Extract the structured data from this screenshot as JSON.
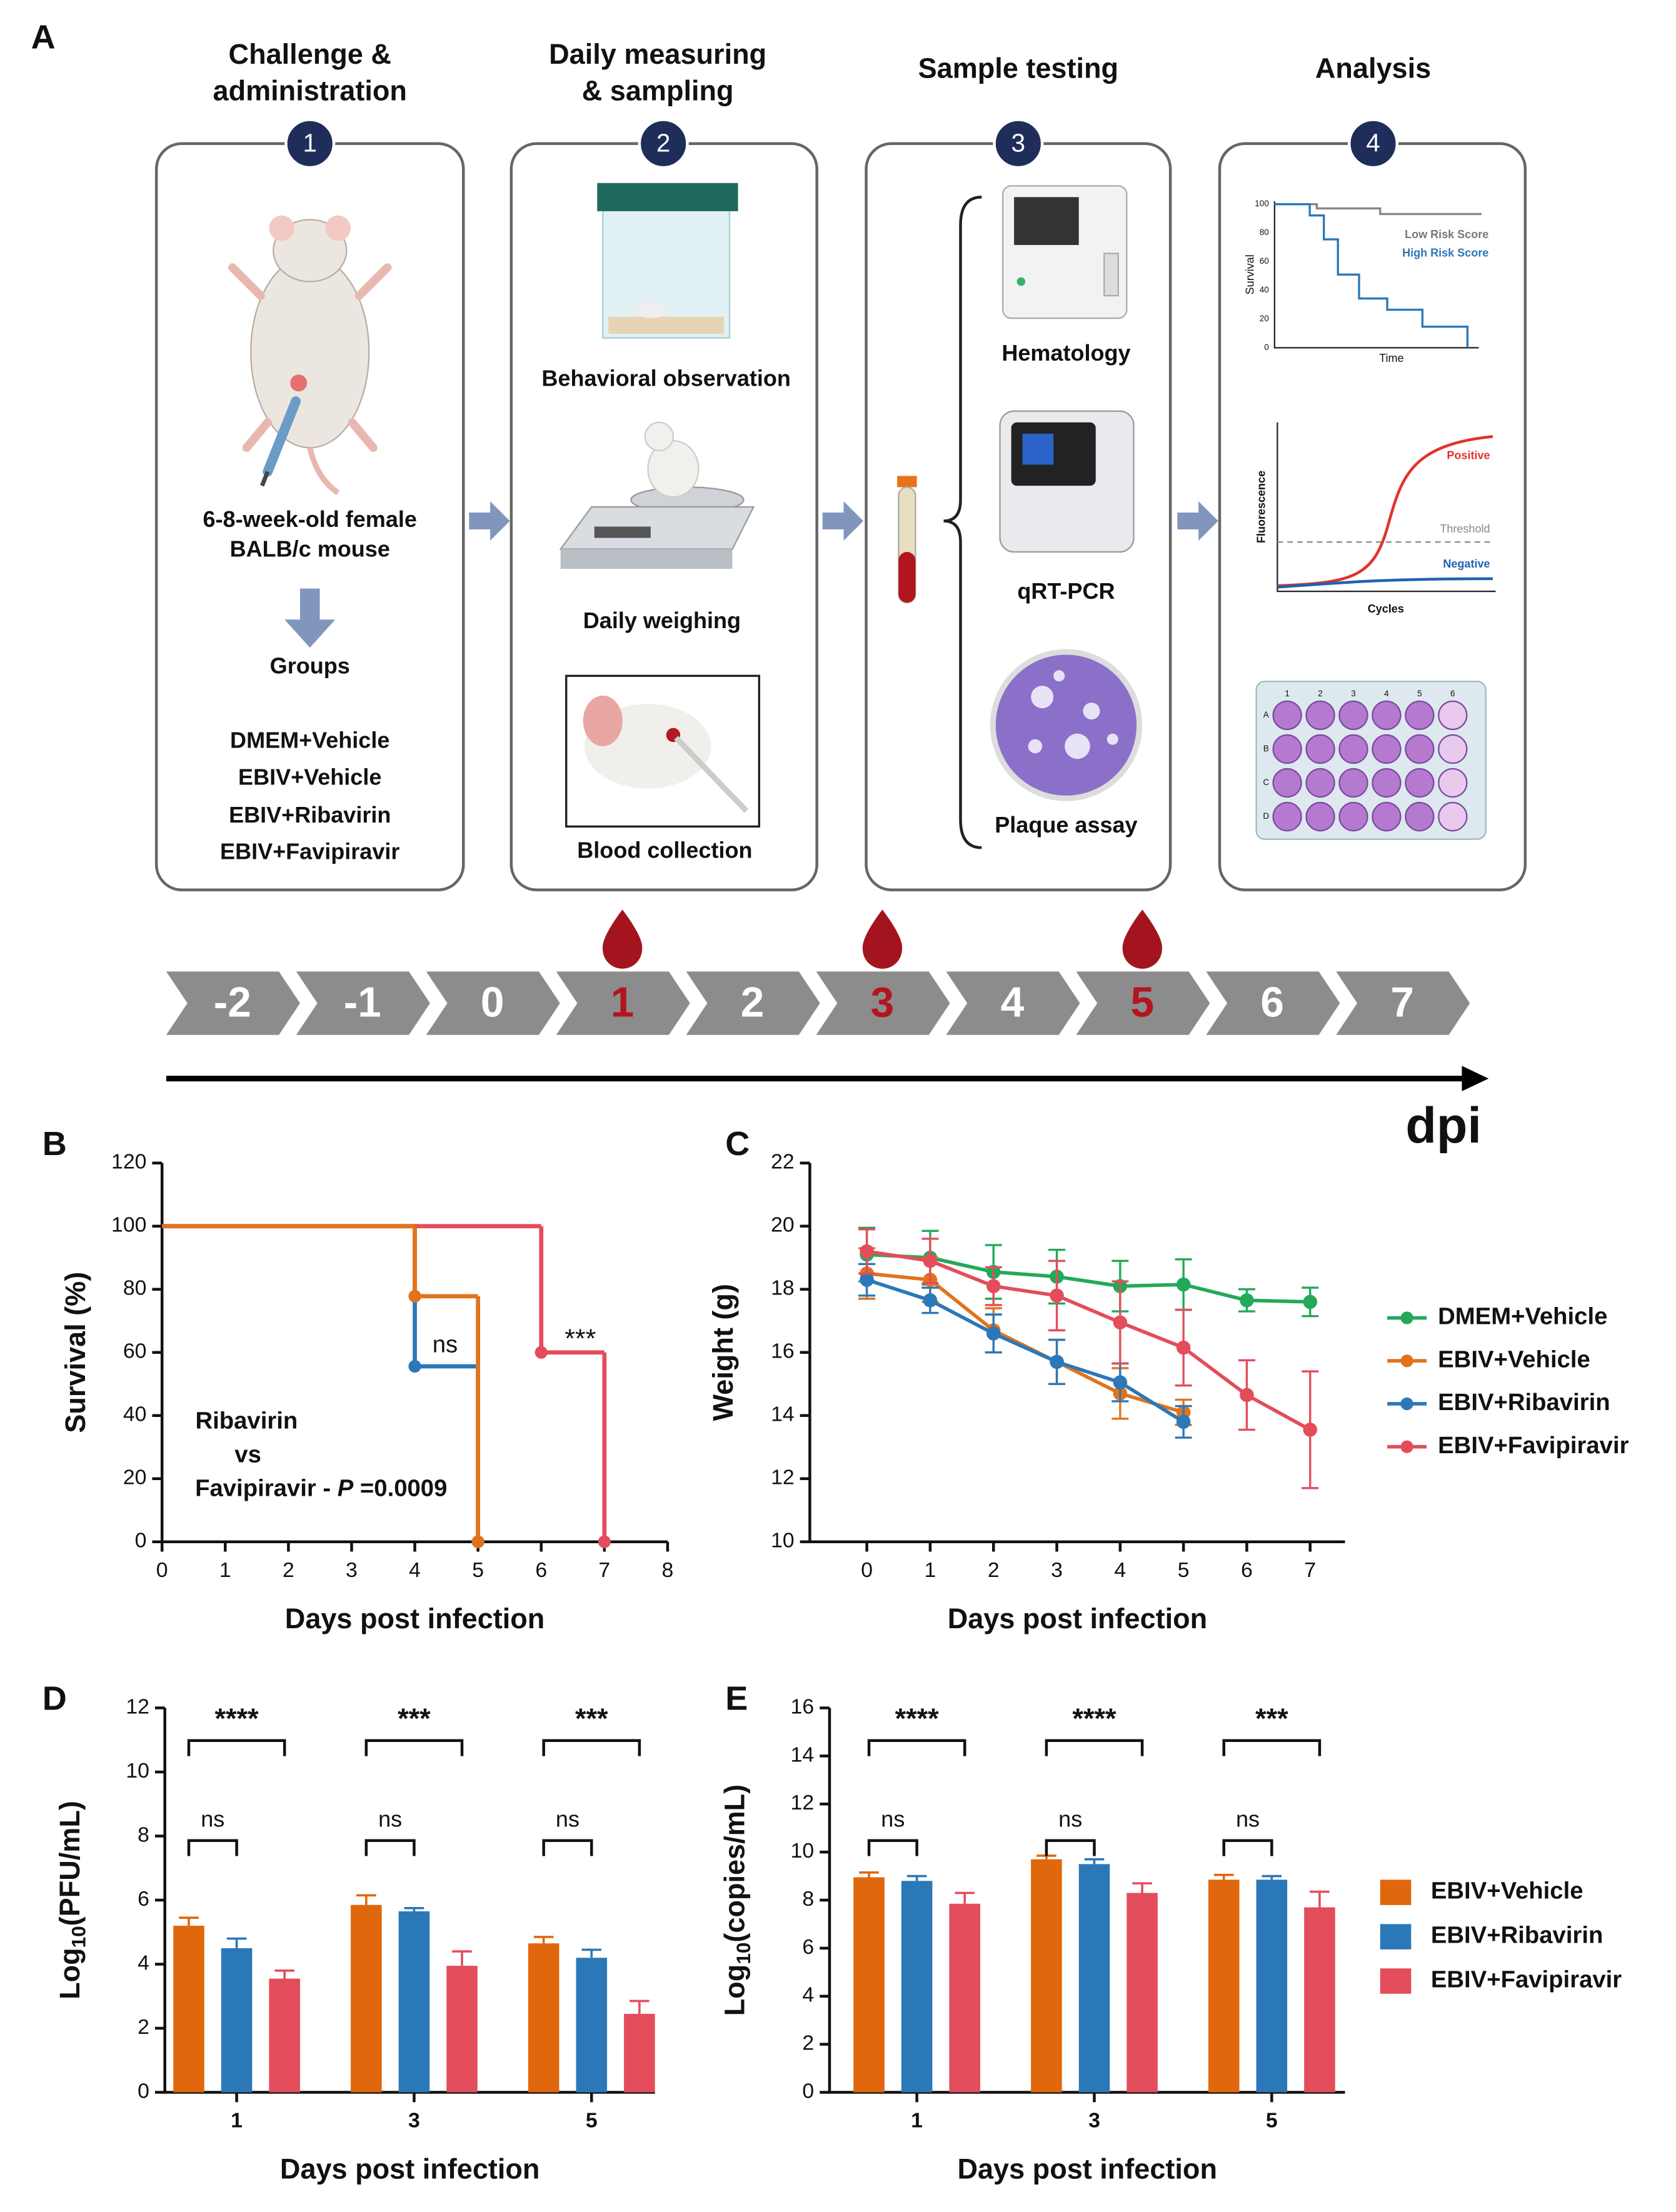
{
  "panel_a": {
    "label": "A",
    "steps": [
      {
        "number": 1,
        "title": [
          "Challenge &",
          "administration"
        ]
      },
      {
        "number": 2,
        "title": [
          "Daily measuring",
          "& sampling"
        ]
      },
      {
        "number": 3,
        "title": [
          "Sample testing"
        ]
      },
      {
        "number": 4,
        "title": [
          "Analysis"
        ]
      }
    ],
    "mouse": [
      "6-8-week-old female",
      "BALB/c mouse"
    ],
    "groups_title": "Groups",
    "groups": [
      "DMEM+Vehicle",
      "EBIV+Vehicle",
      "EBIV+Ribavirin",
      "EBIV+Favipiravir"
    ],
    "step2_items": [
      "Behavioral observation",
      "Daily weighing",
      "Blood collection"
    ],
    "step3_items": [
      "Hematology",
      "qRT-PCR",
      "Plaque assay"
    ],
    "mini_survival": {
      "legend": [
        "Low Risk Score",
        "High Risk Score"
      ],
      "ylabel": "Survival",
      "xlabel": "Time",
      "yticks": [
        0,
        20,
        40,
        60,
        80,
        100
      ]
    },
    "mini_pcr": {
      "positive": "Positive",
      "threshold": "Threshold",
      "negative": "Negative",
      "ylabel": "Fluorescence",
      "xlabel": "Cycles"
    },
    "plate": {
      "columns": [
        1,
        2,
        3,
        4,
        5,
        6
      ],
      "rows": [
        "A",
        "B",
        "C",
        "D"
      ]
    },
    "timeline": {
      "days": [
        -2,
        -1,
        0,
        1,
        2,
        3,
        4,
        5,
        6,
        7
      ],
      "highlight": [
        1,
        3,
        5
      ],
      "unit": "dpi"
    }
  },
  "chart_data": [
    {
      "type": "step",
      "label": "B",
      "xlabel": "Days post infection",
      "ylabel": "Survival (%)",
      "xlim": [
        0,
        8
      ],
      "xticks": [
        0,
        1,
        2,
        3,
        4,
        5,
        6,
        7,
        8
      ],
      "ylim": [
        0,
        120
      ],
      "yticks": [
        0,
        20,
        40,
        60,
        80,
        100,
        120
      ],
      "series": [
        {
          "color": "#e2731b",
          "x": [
            0,
            4,
            5
          ],
          "values": [
            100,
            77.8,
            0
          ]
        },
        {
          "color": "#2b78b9",
          "x": [
            0,
            4,
            5
          ],
          "values": [
            100,
            55.6,
            0
          ]
        },
        {
          "color": "#e34d5b",
          "x": [
            0,
            6,
            7
          ],
          "values": [
            100,
            60,
            0
          ]
        }
      ],
      "annotations": [
        "ns",
        "***",
        "Ribavirin",
        "vs"
      ],
      "p_text": [
        "Favipiravir  - ",
        "P",
        " =0.0009"
      ]
    },
    {
      "type": "line",
      "label": "C",
      "xlabel": "Days post infection",
      "ylabel": "Weight (g)",
      "x": [
        0,
        1,
        2,
        3,
        4,
        5,
        6,
        7
      ],
      "xlim": [
        -0.9,
        7.55
      ],
      "xticks": [
        0,
        1,
        2,
        3,
        4,
        5,
        6,
        7
      ],
      "ylim": [
        10,
        22
      ],
      "yticks": [
        10,
        12,
        14,
        16,
        18,
        20,
        22
      ],
      "legend": "right",
      "series": [
        {
          "name": "DMEM+Vehicle",
          "color": "#22a95a",
          "values": [
            19.1,
            19.0,
            18.55,
            18.4,
            18.1,
            18.15,
            17.65,
            17.6
          ],
          "errors": [
            0.85,
            0.85,
            0.85,
            0.85,
            0.8,
            0.8,
            0.35,
            0.45
          ]
        },
        {
          "name": "EBIV+Vehicle",
          "color": "#e2731b",
          "values": [
            18.5,
            18.3,
            16.7,
            15.7,
            14.7,
            14.1,
            null,
            null
          ],
          "errors": [
            0.8,
            0.7,
            0.7,
            0.7,
            0.8,
            0.4,
            null,
            null
          ]
        },
        {
          "name": "EBIV+Ribavirin",
          "color": "#2b78b9",
          "values": [
            18.3,
            17.65,
            16.6,
            15.7,
            15.05,
            13.8,
            null,
            null
          ],
          "errors": [
            0.5,
            0.4,
            0.6,
            0.7,
            0.6,
            0.5,
            null,
            null
          ]
        },
        {
          "name": "EBIV+Favipiravir",
          "color": "#e34d5b",
          "values": [
            19.2,
            18.9,
            18.1,
            17.8,
            16.95,
            16.15,
            14.65,
            13.55
          ],
          "errors": [
            0.7,
            0.7,
            0.6,
            1.1,
            1.3,
            1.2,
            1.1,
            1.85
          ]
        }
      ]
    },
    {
      "type": "bar",
      "label": "D",
      "xlabel": "Days post infection",
      "ylabel": [
        "Log",
        "10",
        "(PFU/mL)"
      ],
      "categories": [
        "1",
        "3",
        "5"
      ],
      "ylim": [
        0,
        12
      ],
      "yticks": [
        0,
        2,
        4,
        6,
        8,
        10,
        12
      ],
      "series": [
        {
          "name": "EBIV+Vehicle",
          "color": "#e0670c",
          "values": [
            5.2,
            5.85,
            4.65
          ],
          "errors": [
            0.25,
            0.3,
            0.2
          ]
        },
        {
          "name": "EBIV+Ribavirin",
          "color": "#2b78b9",
          "values": [
            4.5,
            5.65,
            4.2
          ],
          "errors": [
            0.3,
            0.1,
            0.25
          ]
        },
        {
          "name": "EBIV+Favipiravir",
          "color": "#e34d5b",
          "values": [
            3.55,
            3.95,
            2.45
          ],
          "errors": [
            0.25,
            0.45,
            0.4
          ]
        }
      ],
      "significance": [
        [
          "****",
          "ns"
        ],
        [
          "***",
          "ns"
        ],
        [
          "***",
          "ns"
        ]
      ]
    },
    {
      "type": "bar",
      "label": "E",
      "xlabel": "Days post infection",
      "ylabel": [
        "Log",
        "10",
        "(copies/mL)"
      ],
      "categories": [
        "1",
        "3",
        "5"
      ],
      "ylim": [
        0,
        16
      ],
      "yticks": [
        0,
        2,
        4,
        6,
        8,
        10,
        12,
        14,
        16
      ],
      "legend": "right",
      "series": [
        {
          "name": "EBIV+Vehicle",
          "color": "#e0670c",
          "values": [
            8.95,
            9.7,
            8.85
          ],
          "errors": [
            0.2,
            0.15,
            0.2
          ]
        },
        {
          "name": "EBIV+Ribavirin",
          "color": "#2b78b9",
          "values": [
            8.8,
            9.5,
            8.85
          ],
          "errors": [
            0.2,
            0.2,
            0.15
          ]
        },
        {
          "name": "EBIV+Favipiravir",
          "color": "#e34d5b",
          "values": [
            7.85,
            8.3,
            7.7
          ],
          "errors": [
            0.45,
            0.4,
            0.65
          ]
        }
      ],
      "significance": [
        [
          "****",
          "ns"
        ],
        [
          "****",
          "ns"
        ],
        [
          "***",
          "ns"
        ]
      ]
    }
  ]
}
